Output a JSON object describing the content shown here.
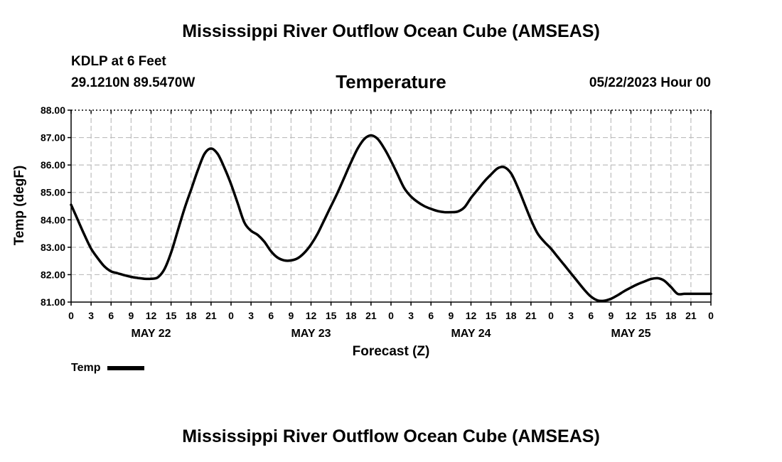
{
  "header": {
    "title": "Mississippi River Outflow Ocean Cube (AMSEAS)",
    "station": "KDLP at 6 Feet",
    "coords": "29.1210N  89.5470W",
    "subtitle": "Temperature",
    "datetime": "05/22/2023 Hour 00"
  },
  "footer": {
    "title": "Mississippi River Outflow Ocean Cube (AMSEAS)"
  },
  "legend": {
    "label": "Temp",
    "color": "#000000"
  },
  "chart_data": {
    "type": "line",
    "title": "Temperature",
    "xlabel": "Forecast (Z)",
    "ylabel": "Temp (degF)",
    "ylim": [
      81.0,
      88.0
    ],
    "xlim": [
      0,
      96
    ],
    "y_ticks": [
      "81.00",
      "82.00",
      "83.00",
      "84.00",
      "85.00",
      "86.00",
      "87.00",
      "88.00"
    ],
    "x_tick_labels": [
      "0",
      "3",
      "6",
      "9",
      "12",
      "15",
      "18",
      "21",
      "0",
      "3",
      "6",
      "9",
      "12",
      "15",
      "18",
      "21",
      "0",
      "3",
      "6",
      "9",
      "12",
      "15",
      "18",
      "21",
      "0",
      "3",
      "6",
      "9",
      "12",
      "15",
      "18",
      "21",
      "0"
    ],
    "day_labels": [
      {
        "label": "MAY 22",
        "hour": 12
      },
      {
        "label": "MAY 23",
        "hour": 36
      },
      {
        "label": "MAY 24",
        "hour": 60
      },
      {
        "label": "MAY 25",
        "hour": 84
      }
    ],
    "grid": true,
    "legend_position": "bottom-left",
    "series": [
      {
        "name": "Temp",
        "color": "#000000",
        "x": [
          0,
          1,
          2,
          3,
          4,
          5,
          6,
          7,
          8,
          9,
          10,
          11,
          12,
          13,
          14,
          15,
          16,
          17,
          18,
          19,
          20,
          21,
          22,
          23,
          24,
          25,
          26,
          27,
          28,
          29,
          30,
          31,
          32,
          33,
          34,
          35,
          36,
          37,
          38,
          39,
          40,
          41,
          42,
          43,
          44,
          45,
          46,
          47,
          48,
          49,
          50,
          51,
          52,
          53,
          54,
          55,
          56,
          57,
          58,
          59,
          60,
          61,
          62,
          63,
          64,
          65,
          66,
          67,
          68,
          69,
          70,
          71,
          72,
          73,
          74,
          75,
          76,
          77,
          78,
          79,
          80,
          81,
          82,
          83,
          84,
          85,
          86,
          87,
          88,
          89,
          90,
          91,
          92,
          93,
          94,
          95,
          96
        ],
        "y": [
          84.55,
          84.0,
          83.45,
          82.95,
          82.6,
          82.3,
          82.12,
          82.05,
          81.98,
          81.92,
          81.88,
          81.85,
          81.85,
          81.9,
          82.2,
          82.8,
          83.6,
          84.4,
          85.1,
          85.8,
          86.4,
          86.6,
          86.4,
          85.9,
          85.3,
          84.6,
          83.9,
          83.6,
          83.45,
          83.2,
          82.85,
          82.62,
          82.52,
          82.52,
          82.6,
          82.8,
          83.1,
          83.5,
          84.0,
          84.5,
          85.0,
          85.55,
          86.1,
          86.6,
          86.95,
          87.08,
          86.95,
          86.6,
          86.15,
          85.65,
          85.15,
          84.85,
          84.65,
          84.5,
          84.4,
          84.32,
          84.28,
          84.28,
          84.3,
          84.45,
          84.8,
          85.1,
          85.4,
          85.65,
          85.88,
          85.92,
          85.7,
          85.2,
          84.6,
          84.0,
          83.5,
          83.2,
          82.95,
          82.65,
          82.35,
          82.05,
          81.75,
          81.45,
          81.2,
          81.06,
          81.05,
          81.12,
          81.25,
          81.4,
          81.53,
          81.65,
          81.75,
          81.84,
          81.87,
          81.78,
          81.55,
          81.3,
          81.3,
          81.3,
          81.3,
          81.3,
          81.3
        ]
      }
    ]
  }
}
